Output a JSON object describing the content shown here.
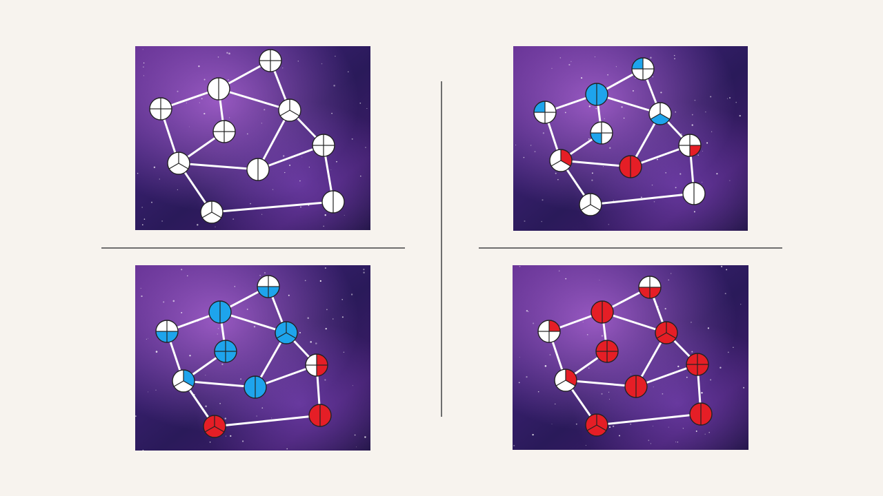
{
  "colors": {
    "background": "#f7f3ee",
    "divider": "#6e6e6e",
    "empty": "#ffffff",
    "blue": "#1ea4ec",
    "red": "#e51e26",
    "edge": "#ffffff",
    "outline": "#222222"
  },
  "panels": [
    {
      "name": "panel-top-left",
      "nodes": [
        {
          "id": "n1",
          "parts": 4,
          "filled": [],
          "color": "none"
        },
        {
          "id": "n2",
          "parts": 2,
          "filled": [],
          "color": "none"
        },
        {
          "id": "n3",
          "parts": 4,
          "filled": [],
          "color": "none"
        },
        {
          "id": "n4",
          "parts": 3,
          "filled": [],
          "color": "none"
        },
        {
          "id": "n5",
          "parts": 4,
          "filled": [],
          "color": "none"
        },
        {
          "id": "n6",
          "parts": 4,
          "filled": [],
          "color": "none"
        },
        {
          "id": "n7",
          "parts": 3,
          "filled": [],
          "color": "none"
        },
        {
          "id": "n8",
          "parts": 2,
          "filled": [],
          "color": "none"
        },
        {
          "id": "n9",
          "parts": 3,
          "filled": [],
          "color": "none"
        },
        {
          "id": "n10",
          "parts": 2,
          "filled": [],
          "color": "none"
        }
      ]
    },
    {
      "name": "panel-top-right",
      "nodes": [
        {
          "id": "n1",
          "parts": 4,
          "filled": [
            3
          ],
          "color": "blue"
        },
        {
          "id": "n2",
          "parts": 2,
          "filled": [
            0,
            1
          ],
          "color": "blue"
        },
        {
          "id": "n3",
          "parts": 4,
          "filled": [
            3
          ],
          "color": "blue"
        },
        {
          "id": "n4",
          "parts": 3,
          "filled": [
            1
          ],
          "color": "blue"
        },
        {
          "id": "n5",
          "parts": 4,
          "filled": [
            2
          ],
          "color": "blue"
        },
        {
          "id": "n6",
          "parts": 4,
          "filled": [
            1
          ],
          "color": "red"
        },
        {
          "id": "n7",
          "parts": 3,
          "filled": [
            0
          ],
          "color": "red"
        },
        {
          "id": "n8",
          "parts": 2,
          "filled": [
            0,
            1
          ],
          "color": "red"
        },
        {
          "id": "n9",
          "parts": 3,
          "filled": [],
          "color": "none"
        },
        {
          "id": "n10",
          "parts": 2,
          "filled": [],
          "color": "none"
        }
      ]
    },
    {
      "name": "panel-bottom-left",
      "nodes": [
        {
          "id": "n1",
          "parts": 4,
          "filled": [
            1,
            2
          ],
          "color": "blue"
        },
        {
          "id": "n2",
          "parts": 2,
          "filled": [
            0,
            1
          ],
          "color": "blue"
        },
        {
          "id": "n3",
          "parts": 4,
          "filled": [
            1,
            2
          ],
          "color": "blue"
        },
        {
          "id": "n4",
          "parts": 3,
          "filled": [
            0,
            1,
            2
          ],
          "color": "blue"
        },
        {
          "id": "n5",
          "parts": 4,
          "filled": [
            0,
            1,
            2,
            3
          ],
          "color": "blue"
        },
        {
          "id": "n6",
          "parts": 4,
          "filled": [
            0,
            1
          ],
          "color": "red"
        },
        {
          "id": "n7",
          "parts": 3,
          "filled": [
            0
          ],
          "color": "blue"
        },
        {
          "id": "n8",
          "parts": 2,
          "filled": [
            0,
            1
          ],
          "color": "blue"
        },
        {
          "id": "n9",
          "parts": 3,
          "filled": [
            0,
            1,
            2
          ],
          "color": "red"
        },
        {
          "id": "n10",
          "parts": 2,
          "filled": [
            0,
            1
          ],
          "color": "red"
        }
      ]
    },
    {
      "name": "panel-bottom-right",
      "nodes": [
        {
          "id": "n1",
          "parts": 4,
          "filled": [
            1,
            2
          ],
          "color": "red"
        },
        {
          "id": "n2",
          "parts": 2,
          "filled": [
            0,
            1
          ],
          "color": "red"
        },
        {
          "id": "n3",
          "parts": 4,
          "filled": [
            0
          ],
          "color": "red"
        },
        {
          "id": "n4",
          "parts": 3,
          "filled": [
            0,
            1,
            2
          ],
          "color": "red"
        },
        {
          "id": "n5",
          "parts": 4,
          "filled": [
            0,
            1,
            2,
            3
          ],
          "color": "red"
        },
        {
          "id": "n6",
          "parts": 4,
          "filled": [
            0,
            1,
            2,
            3
          ],
          "color": "red"
        },
        {
          "id": "n7",
          "parts": 3,
          "filled": [
            0
          ],
          "color": "red"
        },
        {
          "id": "n8",
          "parts": 2,
          "filled": [
            0,
            1
          ],
          "color": "red"
        },
        {
          "id": "n9",
          "parts": 3,
          "filled": [
            0,
            1,
            2
          ],
          "color": "red"
        },
        {
          "id": "n10",
          "parts": 2,
          "filled": [
            0,
            1
          ],
          "color": "red"
        }
      ]
    }
  ],
  "edges": [
    [
      "n1",
      "n2"
    ],
    [
      "n1",
      "n4"
    ],
    [
      "n2",
      "n3"
    ],
    [
      "n2",
      "n4"
    ],
    [
      "n2",
      "n5"
    ],
    [
      "n3",
      "n7"
    ],
    [
      "n4",
      "n6"
    ],
    [
      "n4",
      "n8"
    ],
    [
      "n5",
      "n7"
    ],
    [
      "n6",
      "n8"
    ],
    [
      "n6",
      "n10"
    ],
    [
      "n7",
      "n8"
    ],
    [
      "n7",
      "n9"
    ],
    [
      "n9",
      "n10"
    ]
  ]
}
